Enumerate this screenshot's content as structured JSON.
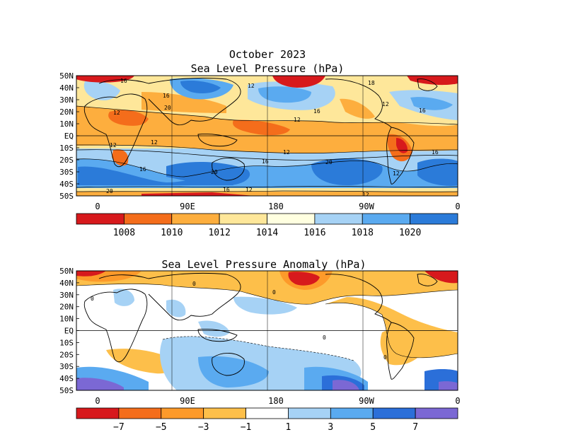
{
  "figure": {
    "month_title": "October 2023",
    "panels": [
      {
        "title": "Sea Level Pressure (hPa)",
        "lat_labels": [
          "50N",
          "40N",
          "30N",
          "20N",
          "10N",
          "EQ",
          "10S",
          "20S",
          "30S",
          "40S",
          "50S"
        ],
        "lon_labels": [
          "0",
          "90E",
          "180",
          "90W",
          "0"
        ],
        "colorbar": {
          "colors": [
            "#d7191c",
            "#f46d1b",
            "#fdae3e",
            "#fee79a",
            "#ffffe0",
            "#a6d2f5",
            "#5aaaf0",
            "#2b7bd9"
          ],
          "tick_labels": [
            "1008",
            "1010",
            "1012",
            "1014",
            "1016",
            "1018",
            "1020"
          ]
        },
        "contour_labels": [
          "16",
          "12",
          "16",
          "20",
          "12",
          "12",
          "16",
          "12",
          "12",
          "16",
          "12",
          "12",
          "16",
          "20",
          "16",
          "20",
          "12",
          "16",
          "20",
          "18",
          "16",
          "12",
          "12"
        ]
      },
      {
        "title": "Sea Level Pressure Anomaly (hPa)",
        "lat_labels": [
          "50N",
          "40N",
          "30N",
          "20N",
          "10N",
          "EQ",
          "10S",
          "20S",
          "30S",
          "40S",
          "50S"
        ],
        "lon_labels": [
          "0",
          "90E",
          "180",
          "90W",
          "0"
        ],
        "colorbar": {
          "colors": [
            "#d7191c",
            "#f46d1b",
            "#fd9a2a",
            "#fdbf4a",
            "#ffffff",
            "#a6d2f5",
            "#5aaaf0",
            "#2b6fd9",
            "#7b68d4"
          ],
          "tick_labels": [
            "−7",
            "−5",
            "−3",
            "−1",
            "1",
            "3",
            "5",
            "7"
          ]
        },
        "contour_labels": [
          "0",
          "0",
          "0",
          "0",
          "0"
        ]
      }
    ]
  },
  "colors": {
    "ocean_bg": "#fee79a",
    "anomaly_bg": "#ffffff",
    "coast": "#000000"
  }
}
